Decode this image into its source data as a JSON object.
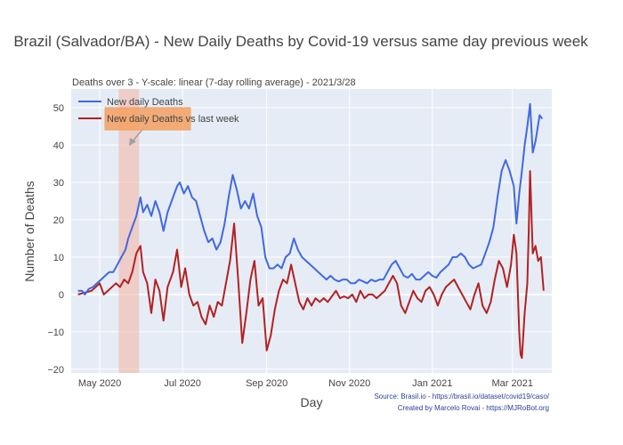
{
  "chart_data": {
    "type": "line",
    "title": "Brazil (Salvador/BA) - New Daily Deaths by Covid-19 versus same day previous week",
    "subtitle": "Deaths over 3 - Y-scale: linear (7-day rolling average) - 2021/3/28",
    "xlabel": "Day",
    "ylabel": "Number of Deaths",
    "xlim": [
      "2020-04-10",
      "2021-03-30"
    ],
    "ylim": [
      -21,
      55
    ],
    "grid": true,
    "legend_position": "top-left",
    "x_ticks": [
      {
        "date": "2020-05-01",
        "label": "May 2020"
      },
      {
        "date": "2020-07-01",
        "label": "Jul 2020"
      },
      {
        "date": "2020-09-01",
        "label": "Sep 2020"
      },
      {
        "date": "2020-11-01",
        "label": "Nov 2020"
      },
      {
        "date": "2021-01-01",
        "label": "Jan 2021"
      },
      {
        "date": "2021-03-01",
        "label": "Mar 2021"
      }
    ],
    "y_ticks": [
      -20,
      -10,
      0,
      10,
      20,
      30,
      40,
      50
    ],
    "shaded_region": {
      "x0": "2020-05-15",
      "x1": "2020-05-30",
      "color": "#f4b8a8"
    },
    "annotation": {
      "text": "",
      "color": "#f4a060"
    },
    "series": [
      {
        "name": "New daily Deaths",
        "color": "#4169e1",
        "points": [
          [
            "2020-04-15",
            1
          ],
          [
            "2020-04-18",
            1
          ],
          [
            "2020-04-20",
            0
          ],
          [
            "2020-04-23",
            1.5
          ],
          [
            "2020-04-26",
            2
          ],
          [
            "2020-04-29",
            3
          ],
          [
            "2020-05-02",
            4
          ],
          [
            "2020-05-05",
            5
          ],
          [
            "2020-05-08",
            6
          ],
          [
            "2020-05-11",
            6
          ],
          [
            "2020-05-14",
            8
          ],
          [
            "2020-05-17",
            10
          ],
          [
            "2020-05-20",
            12
          ],
          [
            "2020-05-22",
            15
          ],
          [
            "2020-05-25",
            18
          ],
          [
            "2020-05-28",
            21
          ],
          [
            "2020-05-31",
            26
          ],
          [
            "2020-06-02",
            22
          ],
          [
            "2020-06-05",
            24
          ],
          [
            "2020-06-08",
            21
          ],
          [
            "2020-06-11",
            25
          ],
          [
            "2020-06-14",
            22
          ],
          [
            "2020-06-17",
            17
          ],
          [
            "2020-06-20",
            22
          ],
          [
            "2020-06-24",
            26
          ],
          [
            "2020-06-27",
            29
          ],
          [
            "2020-06-29",
            30
          ],
          [
            "2020-07-02",
            27
          ],
          [
            "2020-07-05",
            29
          ],
          [
            "2020-07-08",
            26
          ],
          [
            "2020-07-11",
            25
          ],
          [
            "2020-07-14",
            21
          ],
          [
            "2020-07-17",
            17
          ],
          [
            "2020-07-20",
            14
          ],
          [
            "2020-07-23",
            15
          ],
          [
            "2020-07-26",
            12
          ],
          [
            "2020-07-29",
            14
          ],
          [
            "2020-08-01",
            19
          ],
          [
            "2020-08-04",
            26
          ],
          [
            "2020-08-07",
            32
          ],
          [
            "2020-08-10",
            28
          ],
          [
            "2020-08-13",
            23
          ],
          [
            "2020-08-16",
            25
          ],
          [
            "2020-08-19",
            23
          ],
          [
            "2020-08-22",
            27
          ],
          [
            "2020-08-25",
            21
          ],
          [
            "2020-08-28",
            18
          ],
          [
            "2020-08-31",
            10
          ],
          [
            "2020-09-03",
            7
          ],
          [
            "2020-09-06",
            7
          ],
          [
            "2020-09-09",
            8
          ],
          [
            "2020-09-12",
            7
          ],
          [
            "2020-09-15",
            10
          ],
          [
            "2020-09-18",
            11
          ],
          [
            "2020-09-21",
            15
          ],
          [
            "2020-09-24",
            12
          ],
          [
            "2020-09-27",
            10
          ],
          [
            "2020-09-30",
            9
          ],
          [
            "2020-10-03",
            8
          ],
          [
            "2020-10-06",
            7
          ],
          [
            "2020-10-09",
            6
          ],
          [
            "2020-10-12",
            5
          ],
          [
            "2020-10-15",
            4
          ],
          [
            "2020-10-18",
            5
          ],
          [
            "2020-10-21",
            4
          ],
          [
            "2020-10-24",
            3.5
          ],
          [
            "2020-10-27",
            4
          ],
          [
            "2020-10-30",
            4
          ],
          [
            "2020-11-02",
            3
          ],
          [
            "2020-11-05",
            3
          ],
          [
            "2020-11-08",
            4
          ],
          [
            "2020-11-11",
            3.5
          ],
          [
            "2020-11-14",
            3
          ],
          [
            "2020-11-17",
            4
          ],
          [
            "2020-11-20",
            3.5
          ],
          [
            "2020-11-23",
            4
          ],
          [
            "2020-11-26",
            4
          ],
          [
            "2020-11-29",
            6
          ],
          [
            "2020-12-02",
            8
          ],
          [
            "2020-12-05",
            9
          ],
          [
            "2020-12-08",
            7
          ],
          [
            "2020-12-11",
            5
          ],
          [
            "2020-12-14",
            4.5
          ],
          [
            "2020-12-17",
            5.5
          ],
          [
            "2020-12-20",
            4
          ],
          [
            "2020-12-23",
            4
          ],
          [
            "2020-12-26",
            5
          ],
          [
            "2020-12-29",
            6
          ],
          [
            "2021-01-01",
            5
          ],
          [
            "2021-01-04",
            4.5
          ],
          [
            "2021-01-07",
            6
          ],
          [
            "2021-01-10",
            7
          ],
          [
            "2021-01-13",
            8
          ],
          [
            "2021-01-16",
            10
          ],
          [
            "2021-01-19",
            10
          ],
          [
            "2021-01-22",
            11
          ],
          [
            "2021-01-25",
            10
          ],
          [
            "2021-01-28",
            8
          ],
          [
            "2021-01-31",
            7
          ],
          [
            "2021-02-03",
            7.5
          ],
          [
            "2021-02-06",
            8
          ],
          [
            "2021-02-09",
            11
          ],
          [
            "2021-02-12",
            14
          ],
          [
            "2021-02-15",
            18
          ],
          [
            "2021-02-18",
            26
          ],
          [
            "2021-02-21",
            33
          ],
          [
            "2021-02-24",
            36
          ],
          [
            "2021-02-27",
            33
          ],
          [
            "2021-03-02",
            29
          ],
          [
            "2021-03-04",
            19
          ],
          [
            "2021-03-06",
            27
          ],
          [
            "2021-03-08",
            33
          ],
          [
            "2021-03-10",
            40
          ],
          [
            "2021-03-12",
            45
          ],
          [
            "2021-03-14",
            51
          ],
          [
            "2021-03-16",
            38
          ],
          [
            "2021-03-18",
            41
          ],
          [
            "2021-03-21",
            48
          ],
          [
            "2021-03-23",
            47
          ]
        ]
      },
      {
        "name": "New daily Deaths vs last week",
        "color": "#b22222",
        "points": [
          [
            "2020-04-15",
            0
          ],
          [
            "2020-04-20",
            0.5
          ],
          [
            "2020-04-25",
            1
          ],
          [
            "2020-04-28",
            2
          ],
          [
            "2020-05-01",
            3
          ],
          [
            "2020-05-04",
            0
          ],
          [
            "2020-05-07",
            1
          ],
          [
            "2020-05-10",
            2
          ],
          [
            "2020-05-13",
            3
          ],
          [
            "2020-05-16",
            2
          ],
          [
            "2020-05-19",
            4
          ],
          [
            "2020-05-22",
            3
          ],
          [
            "2020-05-25",
            6
          ],
          [
            "2020-05-28",
            11
          ],
          [
            "2020-05-31",
            13
          ],
          [
            "2020-06-02",
            6
          ],
          [
            "2020-06-05",
            3
          ],
          [
            "2020-06-08",
            -5
          ],
          [
            "2020-06-11",
            4
          ],
          [
            "2020-06-14",
            1
          ],
          [
            "2020-06-17",
            -7
          ],
          [
            "2020-06-20",
            2
          ],
          [
            "2020-06-24",
            6
          ],
          [
            "2020-06-27",
            12
          ],
          [
            "2020-06-30",
            2
          ],
          [
            "2020-07-03",
            7
          ],
          [
            "2020-07-06",
            0
          ],
          [
            "2020-07-09",
            -3
          ],
          [
            "2020-07-12",
            -2
          ],
          [
            "2020-07-15",
            -6
          ],
          [
            "2020-07-18",
            -8
          ],
          [
            "2020-07-21",
            -3
          ],
          [
            "2020-07-24",
            -6
          ],
          [
            "2020-07-27",
            -2
          ],
          [
            "2020-07-30",
            -3
          ],
          [
            "2020-08-02",
            3
          ],
          [
            "2020-08-05",
            9
          ],
          [
            "2020-08-08",
            19
          ],
          [
            "2020-08-11",
            4
          ],
          [
            "2020-08-14",
            -13
          ],
          [
            "2020-08-17",
            -5
          ],
          [
            "2020-08-20",
            4
          ],
          [
            "2020-08-23",
            9
          ],
          [
            "2020-08-26",
            -3
          ],
          [
            "2020-08-29",
            -1
          ],
          [
            "2020-09-01",
            -15
          ],
          [
            "2020-09-04",
            -11
          ],
          [
            "2020-09-07",
            -4
          ],
          [
            "2020-09-10",
            1
          ],
          [
            "2020-09-13",
            4
          ],
          [
            "2020-09-16",
            3
          ],
          [
            "2020-09-19",
            8
          ],
          [
            "2020-09-22",
            3
          ],
          [
            "2020-09-25",
            -2
          ],
          [
            "2020-09-28",
            -4
          ],
          [
            "2020-10-01",
            -1
          ],
          [
            "2020-10-04",
            -3
          ],
          [
            "2020-10-07",
            -1
          ],
          [
            "2020-10-10",
            -2
          ],
          [
            "2020-10-13",
            -1
          ],
          [
            "2020-10-16",
            -2
          ],
          [
            "2020-10-19",
            -0.5
          ],
          [
            "2020-10-22",
            1
          ],
          [
            "2020-10-25",
            -1
          ],
          [
            "2020-10-28",
            -0.5
          ],
          [
            "2020-10-31",
            -1
          ],
          [
            "2020-11-03",
            0
          ],
          [
            "2020-11-06",
            -2
          ],
          [
            "2020-11-09",
            1
          ],
          [
            "2020-11-12",
            -1
          ],
          [
            "2020-11-15",
            0
          ],
          [
            "2020-11-18",
            0
          ],
          [
            "2020-11-21",
            -1
          ],
          [
            "2020-11-24",
            0
          ],
          [
            "2020-11-27",
            1
          ],
          [
            "2020-11-30",
            3
          ],
          [
            "2020-12-03",
            5
          ],
          [
            "2020-12-06",
            3
          ],
          [
            "2020-12-09",
            -3
          ],
          [
            "2020-12-12",
            -5
          ],
          [
            "2020-12-15",
            -2
          ],
          [
            "2020-12-18",
            1
          ],
          [
            "2020-12-21",
            -1
          ],
          [
            "2020-12-24",
            -2
          ],
          [
            "2020-12-27",
            1
          ],
          [
            "2020-12-30",
            2
          ],
          [
            "2021-01-02",
            0
          ],
          [
            "2021-01-05",
            -3
          ],
          [
            "2021-01-08",
            0
          ],
          [
            "2021-01-11",
            2
          ],
          [
            "2021-01-14",
            3
          ],
          [
            "2021-01-17",
            4
          ],
          [
            "2021-01-20",
            2
          ],
          [
            "2021-01-23",
            0
          ],
          [
            "2021-01-26",
            -2
          ],
          [
            "2021-01-29",
            -4
          ],
          [
            "2021-02-01",
            0
          ],
          [
            "2021-02-04",
            3
          ],
          [
            "2021-02-07",
            -3
          ],
          [
            "2021-02-10",
            -5
          ],
          [
            "2021-02-13",
            -2
          ],
          [
            "2021-02-16",
            4
          ],
          [
            "2021-02-19",
            9
          ],
          [
            "2021-02-22",
            7
          ],
          [
            "2021-02-25",
            2
          ],
          [
            "2021-02-28",
            8
          ],
          [
            "2021-03-02",
            16
          ],
          [
            "2021-03-04",
            11
          ],
          [
            "2021-03-06",
            -10
          ],
          [
            "2021-03-07",
            -16
          ],
          [
            "2021-03-08",
            -17
          ],
          [
            "2021-03-10",
            -5
          ],
          [
            "2021-03-12",
            3
          ],
          [
            "2021-03-13",
            17
          ],
          [
            "2021-03-14",
            33
          ],
          [
            "2021-03-16",
            11
          ],
          [
            "2021-03-18",
            13
          ],
          [
            "2021-03-20",
            9
          ],
          [
            "2021-03-22",
            10
          ],
          [
            "2021-03-24",
            1
          ]
        ]
      }
    ]
  },
  "source": {
    "line1": "Source: Brasil.io - https://brasil.io/dataset/covid19/caso/",
    "line2": "Created by Marcelo Rovai - https://MJRoBot.org"
  }
}
